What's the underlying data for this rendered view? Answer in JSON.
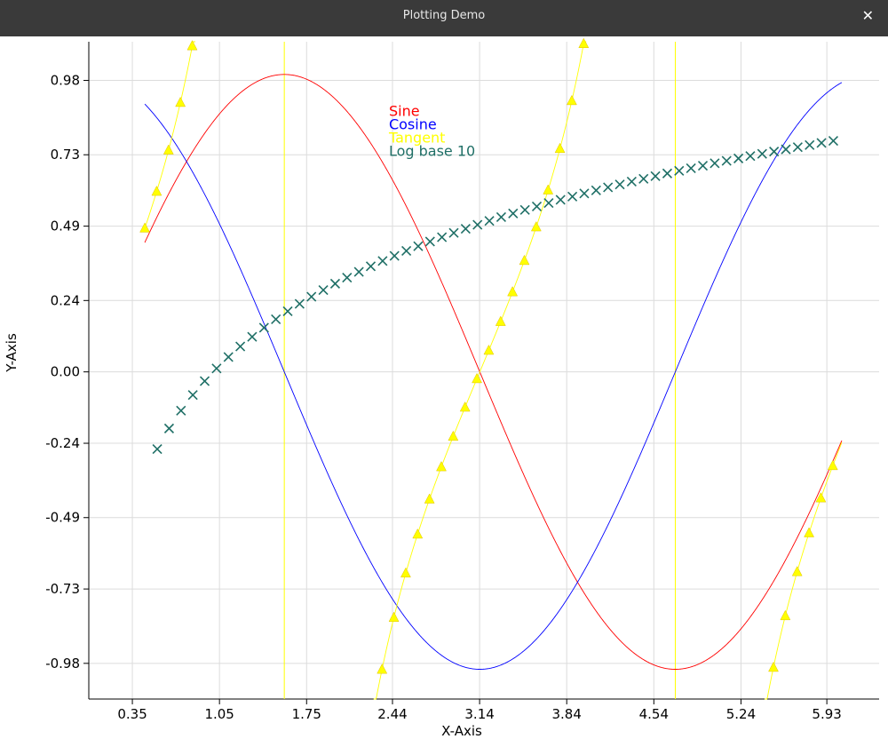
{
  "window": {
    "title": "Plotting Demo",
    "close_icon": "close-icon",
    "close_glyph": "✕"
  },
  "chart_data": {
    "type": "line",
    "xlabel": "X-Axis",
    "ylabel": "Y-Axis",
    "xlim": [
      0.0,
      6.35
    ],
    "ylim": [
      -1.1,
      1.11
    ],
    "x_ticks": [
      "0.35",
      "1.05",
      "1.75",
      "2.44",
      "3.14",
      "3.84",
      "4.54",
      "5.24",
      "5.93"
    ],
    "y_ticks": [
      "0.98",
      "0.73",
      "0.49",
      "0.24",
      "0.00",
      "-0.24",
      "-0.49",
      "-0.73",
      "-0.98"
    ],
    "grid": true,
    "legend_placement": "top-center",
    "series": [
      {
        "name": "Sine",
        "color": "#ff0000",
        "function": "sin",
        "x_range": [
          0.45,
          6.05
        ],
        "style": "line"
      },
      {
        "name": "Cosine",
        "color": "#0000ff",
        "function": "cos",
        "x_range": [
          0.45,
          6.05
        ],
        "style": "line"
      },
      {
        "name": "Tangent",
        "color": "#ffff00",
        "function": "tan",
        "x_range": [
          0.45,
          6.05
        ],
        "marker": "triangle",
        "marker_step": 0.0953,
        "style": "line+markers"
      },
      {
        "name": "Log base 10",
        "color": "#1f6f66",
        "function": "log10",
        "x_range": [
          0.55,
          6.05
        ],
        "marker": "x",
        "marker_step": 0.0953,
        "style": "markers"
      }
    ]
  }
}
